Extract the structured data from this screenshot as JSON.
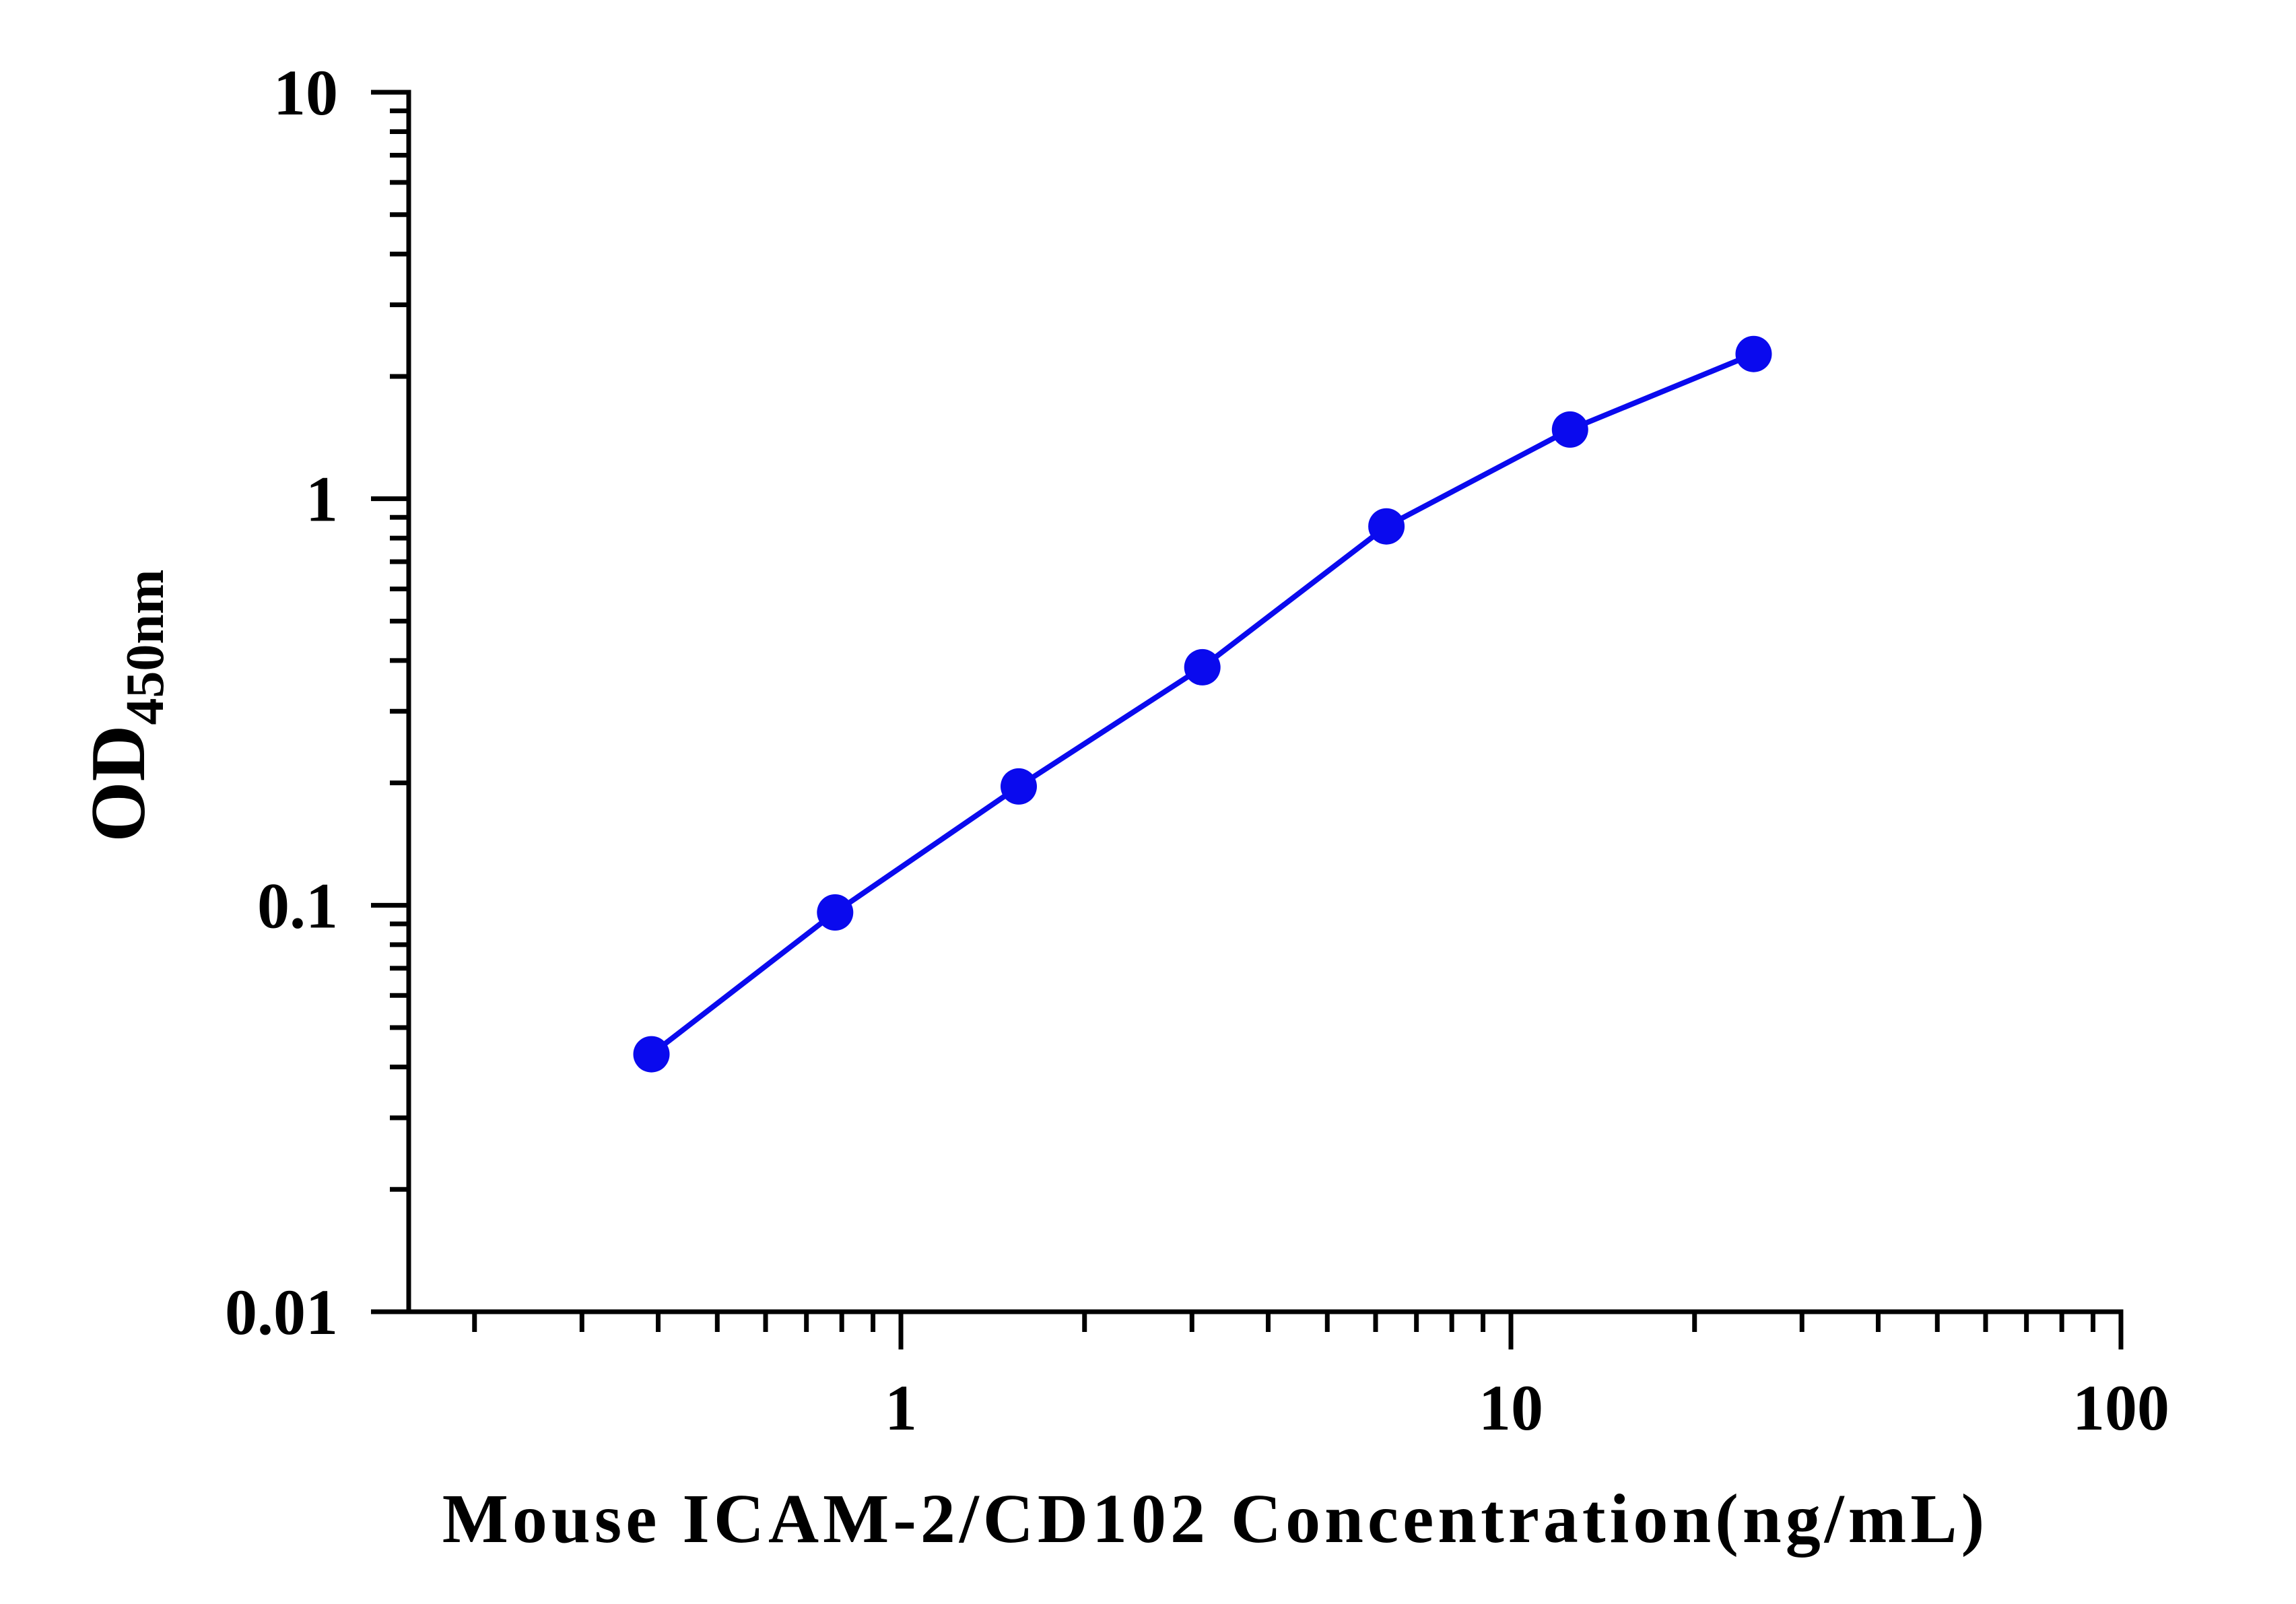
{
  "chart_data": {
    "type": "line",
    "xlabel": "Mouse ICAM-2/CD102 Concentration(ng/mL)",
    "ylabel": "OD",
    "ylabel_subscript": "450nm",
    "xscale": "log",
    "yscale": "log",
    "xlim": [
      0.156,
      100
    ],
    "ylim": [
      0.01,
      10
    ],
    "x_ticks": [
      1,
      10,
      100
    ],
    "x_tick_labels": [
      "1",
      "10",
      "100"
    ],
    "y_ticks": [
      0.01,
      0.1,
      1,
      10
    ],
    "y_tick_labels": [
      "0.01",
      "0.1",
      "1",
      "10"
    ],
    "grid": false,
    "series": [
      {
        "color": "#0a0aee",
        "x": [
          0.39,
          0.78,
          1.56,
          3.12,
          6.25,
          12.5,
          25
        ],
        "y": [
          0.043,
          0.096,
          0.196,
          0.385,
          0.855,
          1.48,
          2.27
        ]
      }
    ]
  }
}
